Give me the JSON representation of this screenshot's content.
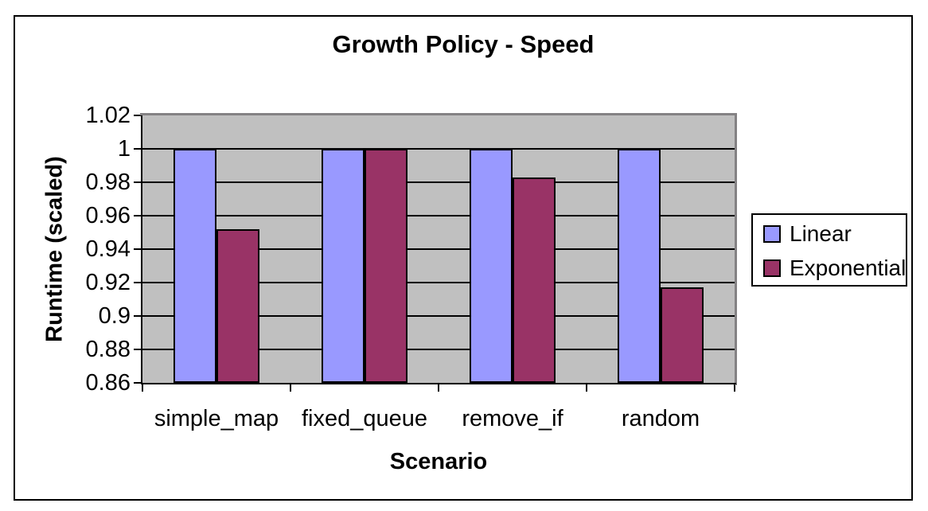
{
  "chart_data": {
    "type": "bar",
    "title": "Growth Policy - Speed",
    "xlabel": "Scenario",
    "ylabel": "Runtime (scaled)",
    "categories": [
      "simple_map",
      "fixed_queue",
      "remove_if",
      "random"
    ],
    "series": [
      {
        "name": "Linear",
        "color": "#9999FF",
        "values": [
          1,
          1,
          1,
          1
        ]
      },
      {
        "name": "Exponential",
        "color": "#993366",
        "values": [
          0.952,
          1,
          0.983,
          0.917
        ]
      }
    ],
    "ylim": [
      0.86,
      1.02
    ],
    "ytick_step": 0.02,
    "ytick_labels": [
      "1.02",
      "1",
      "0.98",
      "0.96",
      "0.94",
      "0.92",
      "0.9",
      "0.88",
      "0.86"
    ],
    "grid": true,
    "legend_position": "right",
    "colors": {
      "plot_background": "#C0C0C0",
      "gridline": "#000000",
      "plot_border_shadow": "#848284",
      "axis": "#000000",
      "frame_border": "#000000",
      "background": "#FFFFFF",
      "text": "#000000"
    }
  }
}
